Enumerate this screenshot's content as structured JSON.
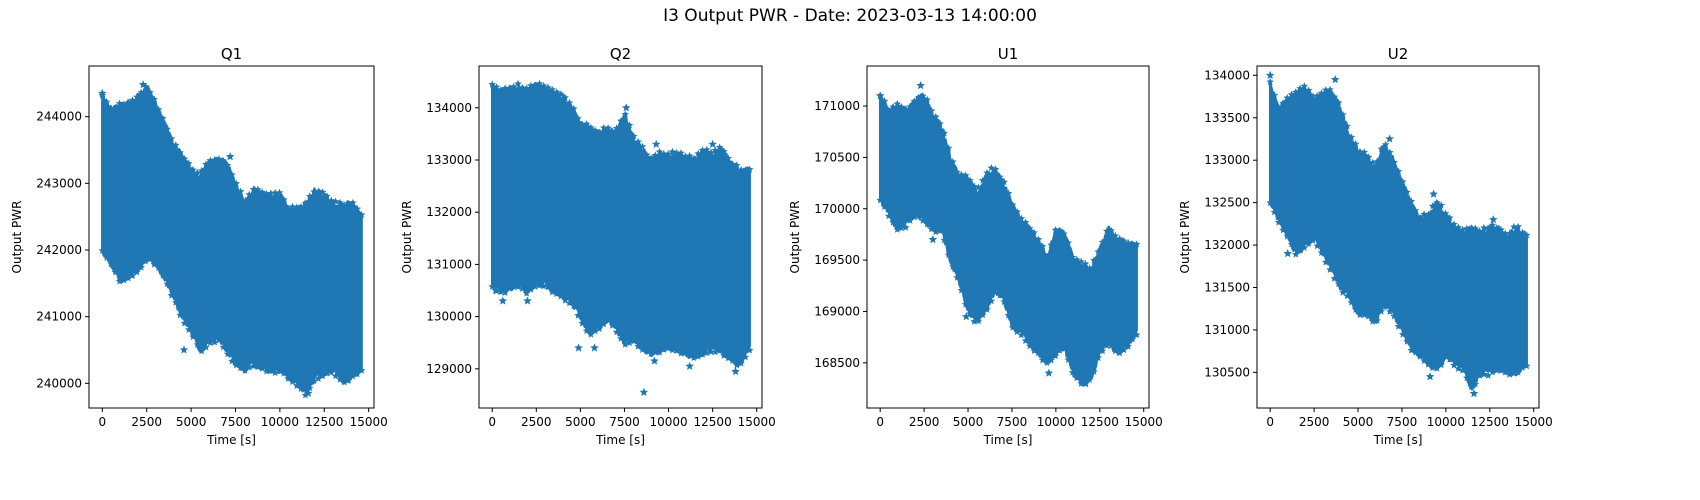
{
  "figure": {
    "title": "I3 Output PWR - Date: 2023-03-13 14:00:00"
  },
  "colors": {
    "series": "#1f77b4",
    "axes": "#000000"
  },
  "chart_data": [
    {
      "type": "scatter",
      "title": "Q1",
      "xlabel": "Time [s]",
      "ylabel": "Output PWR",
      "marker": "star",
      "grid": false,
      "xlim": [
        -750,
        15300
      ],
      "ylim": [
        239630,
        244760
      ],
      "xticks": [
        0,
        2500,
        5000,
        7500,
        10000,
        12500,
        15000
      ],
      "yticks": [
        240000,
        241000,
        242000,
        243000,
        244000
      ],
      "envelope": {
        "x": [
          0,
          500,
          1000,
          1500,
          2000,
          2500,
          3000,
          3500,
          4000,
          4500,
          5000,
          5500,
          6000,
          6500,
          7000,
          7500,
          8000,
          8500,
          9000,
          9500,
          10000,
          10500,
          11000,
          11500,
          12000,
          12500,
          13000,
          13500,
          14000,
          14600
        ],
        "high": [
          244300,
          244100,
          244150,
          244200,
          244300,
          244450,
          244200,
          243900,
          243600,
          243400,
          243200,
          243100,
          243300,
          243350,
          243300,
          243000,
          242700,
          242900,
          242850,
          242800,
          242850,
          242600,
          242600,
          242700,
          242900,
          242800,
          242700,
          242650,
          242700,
          242500
        ],
        "low": [
          242000,
          241800,
          241550,
          241600,
          241700,
          241900,
          241800,
          241600,
          241300,
          241000,
          240800,
          240500,
          240600,
          240700,
          240500,
          240300,
          240200,
          240300,
          240250,
          240200,
          240200,
          240100,
          240000,
          239850,
          240100,
          240150,
          240200,
          240050,
          240100,
          240200
        ]
      },
      "outliers": [
        [
          0,
          244350
        ],
        [
          2300,
          244480
        ],
        [
          7200,
          243400
        ],
        [
          11600,
          239850
        ],
        [
          13800,
          240050
        ],
        [
          4600,
          240500
        ]
      ]
    },
    {
      "type": "scatter",
      "title": "Q2",
      "xlabel": "Time [s]",
      "ylabel": "Output PWR",
      "marker": "star",
      "grid": false,
      "xlim": [
        -750,
        15300
      ],
      "ylim": [
        128250,
        134800
      ],
      "xticks": [
        0,
        2500,
        5000,
        7500,
        10000,
        12500,
        15000
      ],
      "yticks": [
        129000,
        130000,
        131000,
        132000,
        133000,
        134000
      ],
      "envelope": {
        "x": [
          0,
          500,
          1000,
          1500,
          2000,
          2500,
          3000,
          3500,
          4000,
          4500,
          5000,
          5500,
          6000,
          6500,
          7000,
          7500,
          8000,
          8500,
          9000,
          9500,
          10000,
          10500,
          11000,
          11500,
          12000,
          12500,
          13000,
          13500,
          14000,
          14600
        ],
        "high": [
          134400,
          134300,
          134350,
          134400,
          134300,
          134450,
          134400,
          134300,
          134200,
          134000,
          133700,
          133600,
          133500,
          133600,
          133500,
          133900,
          133400,
          133200,
          133000,
          133100,
          133100,
          133100,
          133050,
          133000,
          133200,
          133100,
          133200,
          132950,
          132800,
          132800
        ],
        "low": [
          130600,
          130500,
          130550,
          130600,
          130500,
          130600,
          130650,
          130500,
          130400,
          130300,
          130000,
          129700,
          129800,
          129950,
          129800,
          129500,
          129600,
          129400,
          129300,
          129350,
          129400,
          129400,
          129300,
          129200,
          129300,
          129400,
          129350,
          129200,
          129100,
          129400
        ]
      },
      "outliers": [
        [
          600,
          130300
        ],
        [
          2000,
          130300
        ],
        [
          4900,
          129400
        ],
        [
          5800,
          129400
        ],
        [
          8600,
          128550
        ],
        [
          9200,
          129150
        ],
        [
          11200,
          129050
        ],
        [
          13800,
          128950
        ],
        [
          7600,
          134000
        ],
        [
          9300,
          133300
        ],
        [
          12500,
          133300
        ],
        [
          200,
          130500
        ]
      ]
    },
    {
      "type": "scatter",
      "title": "U1",
      "xlabel": "Time [s]",
      "ylabel": "Output PWR",
      "marker": "star",
      "grid": false,
      "xlim": [
        -750,
        15300
      ],
      "ylim": [
        168060,
        171390
      ],
      "xticks": [
        0,
        2500,
        5000,
        7500,
        10000,
        12500,
        15000
      ],
      "yticks": [
        168500,
        169000,
        169500,
        170000,
        170500,
        171000
      ],
      "envelope": {
        "x": [
          0,
          500,
          1000,
          1500,
          2000,
          2500,
          3000,
          3500,
          4000,
          4500,
          5000,
          5500,
          6000,
          6500,
          7000,
          7500,
          8000,
          8500,
          9000,
          9500,
          10000,
          10500,
          11000,
          11500,
          12000,
          12500,
          13000,
          13500,
          14000,
          14600
        ],
        "high": [
          171100,
          170950,
          171000,
          170950,
          171050,
          171100,
          170900,
          170800,
          170500,
          170300,
          170300,
          170150,
          170300,
          170400,
          170250,
          170050,
          169900,
          169800,
          169700,
          169500,
          169800,
          169750,
          169500,
          169450,
          169400,
          169600,
          169800,
          169700,
          169650,
          169650
        ],
        "low": [
          170100,
          169950,
          169800,
          169850,
          169950,
          169900,
          169800,
          169800,
          169500,
          169300,
          169000,
          168900,
          169000,
          169200,
          169150,
          168850,
          168800,
          168700,
          168600,
          168500,
          168600,
          168650,
          168400,
          168300,
          168350,
          168600,
          168700,
          168600,
          168650,
          168800
        ]
      },
      "outliers": [
        [
          2300,
          171200
        ],
        [
          0,
          171100
        ],
        [
          3000,
          169700
        ],
        [
          4200,
          169850
        ],
        [
          4900,
          168950
        ],
        [
          9600,
          168400
        ],
        [
          11700,
          168300
        ]
      ]
    },
    {
      "type": "scatter",
      "title": "U2",
      "xlabel": "Time [s]",
      "ylabel": "Output PWR",
      "marker": "star",
      "grid": false,
      "xlim": [
        -750,
        15300
      ],
      "ylim": [
        130080,
        134110
      ],
      "xticks": [
        0,
        2500,
        5000,
        7500,
        10000,
        12500,
        15000
      ],
      "yticks": [
        130500,
        131000,
        131500,
        132000,
        132500,
        133000,
        133500,
        134000
      ],
      "envelope": {
        "x": [
          0,
          500,
          1000,
          1500,
          2000,
          2500,
          3000,
          3500,
          4000,
          4500,
          5000,
          5500,
          6000,
          6500,
          7000,
          7500,
          8000,
          8500,
          9000,
          9500,
          10000,
          10500,
          11000,
          11500,
          12000,
          12500,
          13000,
          13500,
          14000,
          14600
        ],
        "high": [
          133900,
          133600,
          133700,
          133800,
          133850,
          133700,
          133800,
          133800,
          133600,
          133300,
          133100,
          133050,
          132900,
          133200,
          133000,
          132750,
          132500,
          132300,
          132350,
          132500,
          132350,
          132200,
          132150,
          132200,
          132150,
          132200,
          132200,
          132100,
          132200,
          132100
        ],
        "low": [
          132500,
          132300,
          132100,
          131900,
          132000,
          132100,
          131900,
          131700,
          131500,
          131400,
          131200,
          131200,
          131100,
          131300,
          131200,
          131000,
          130800,
          130700,
          130600,
          130550,
          130700,
          130600,
          130550,
          130300,
          130500,
          130500,
          130550,
          130500,
          130500,
          130600
        ]
      },
      "outliers": [
        [
          0,
          134000
        ],
        [
          3700,
          133950
        ],
        [
          6800,
          133250
        ],
        [
          9300,
          132600
        ],
        [
          11600,
          130250
        ],
        [
          9100,
          130450
        ],
        [
          1000,
          131900
        ],
        [
          5300,
          131200
        ],
        [
          12700,
          132300
        ]
      ]
    }
  ]
}
